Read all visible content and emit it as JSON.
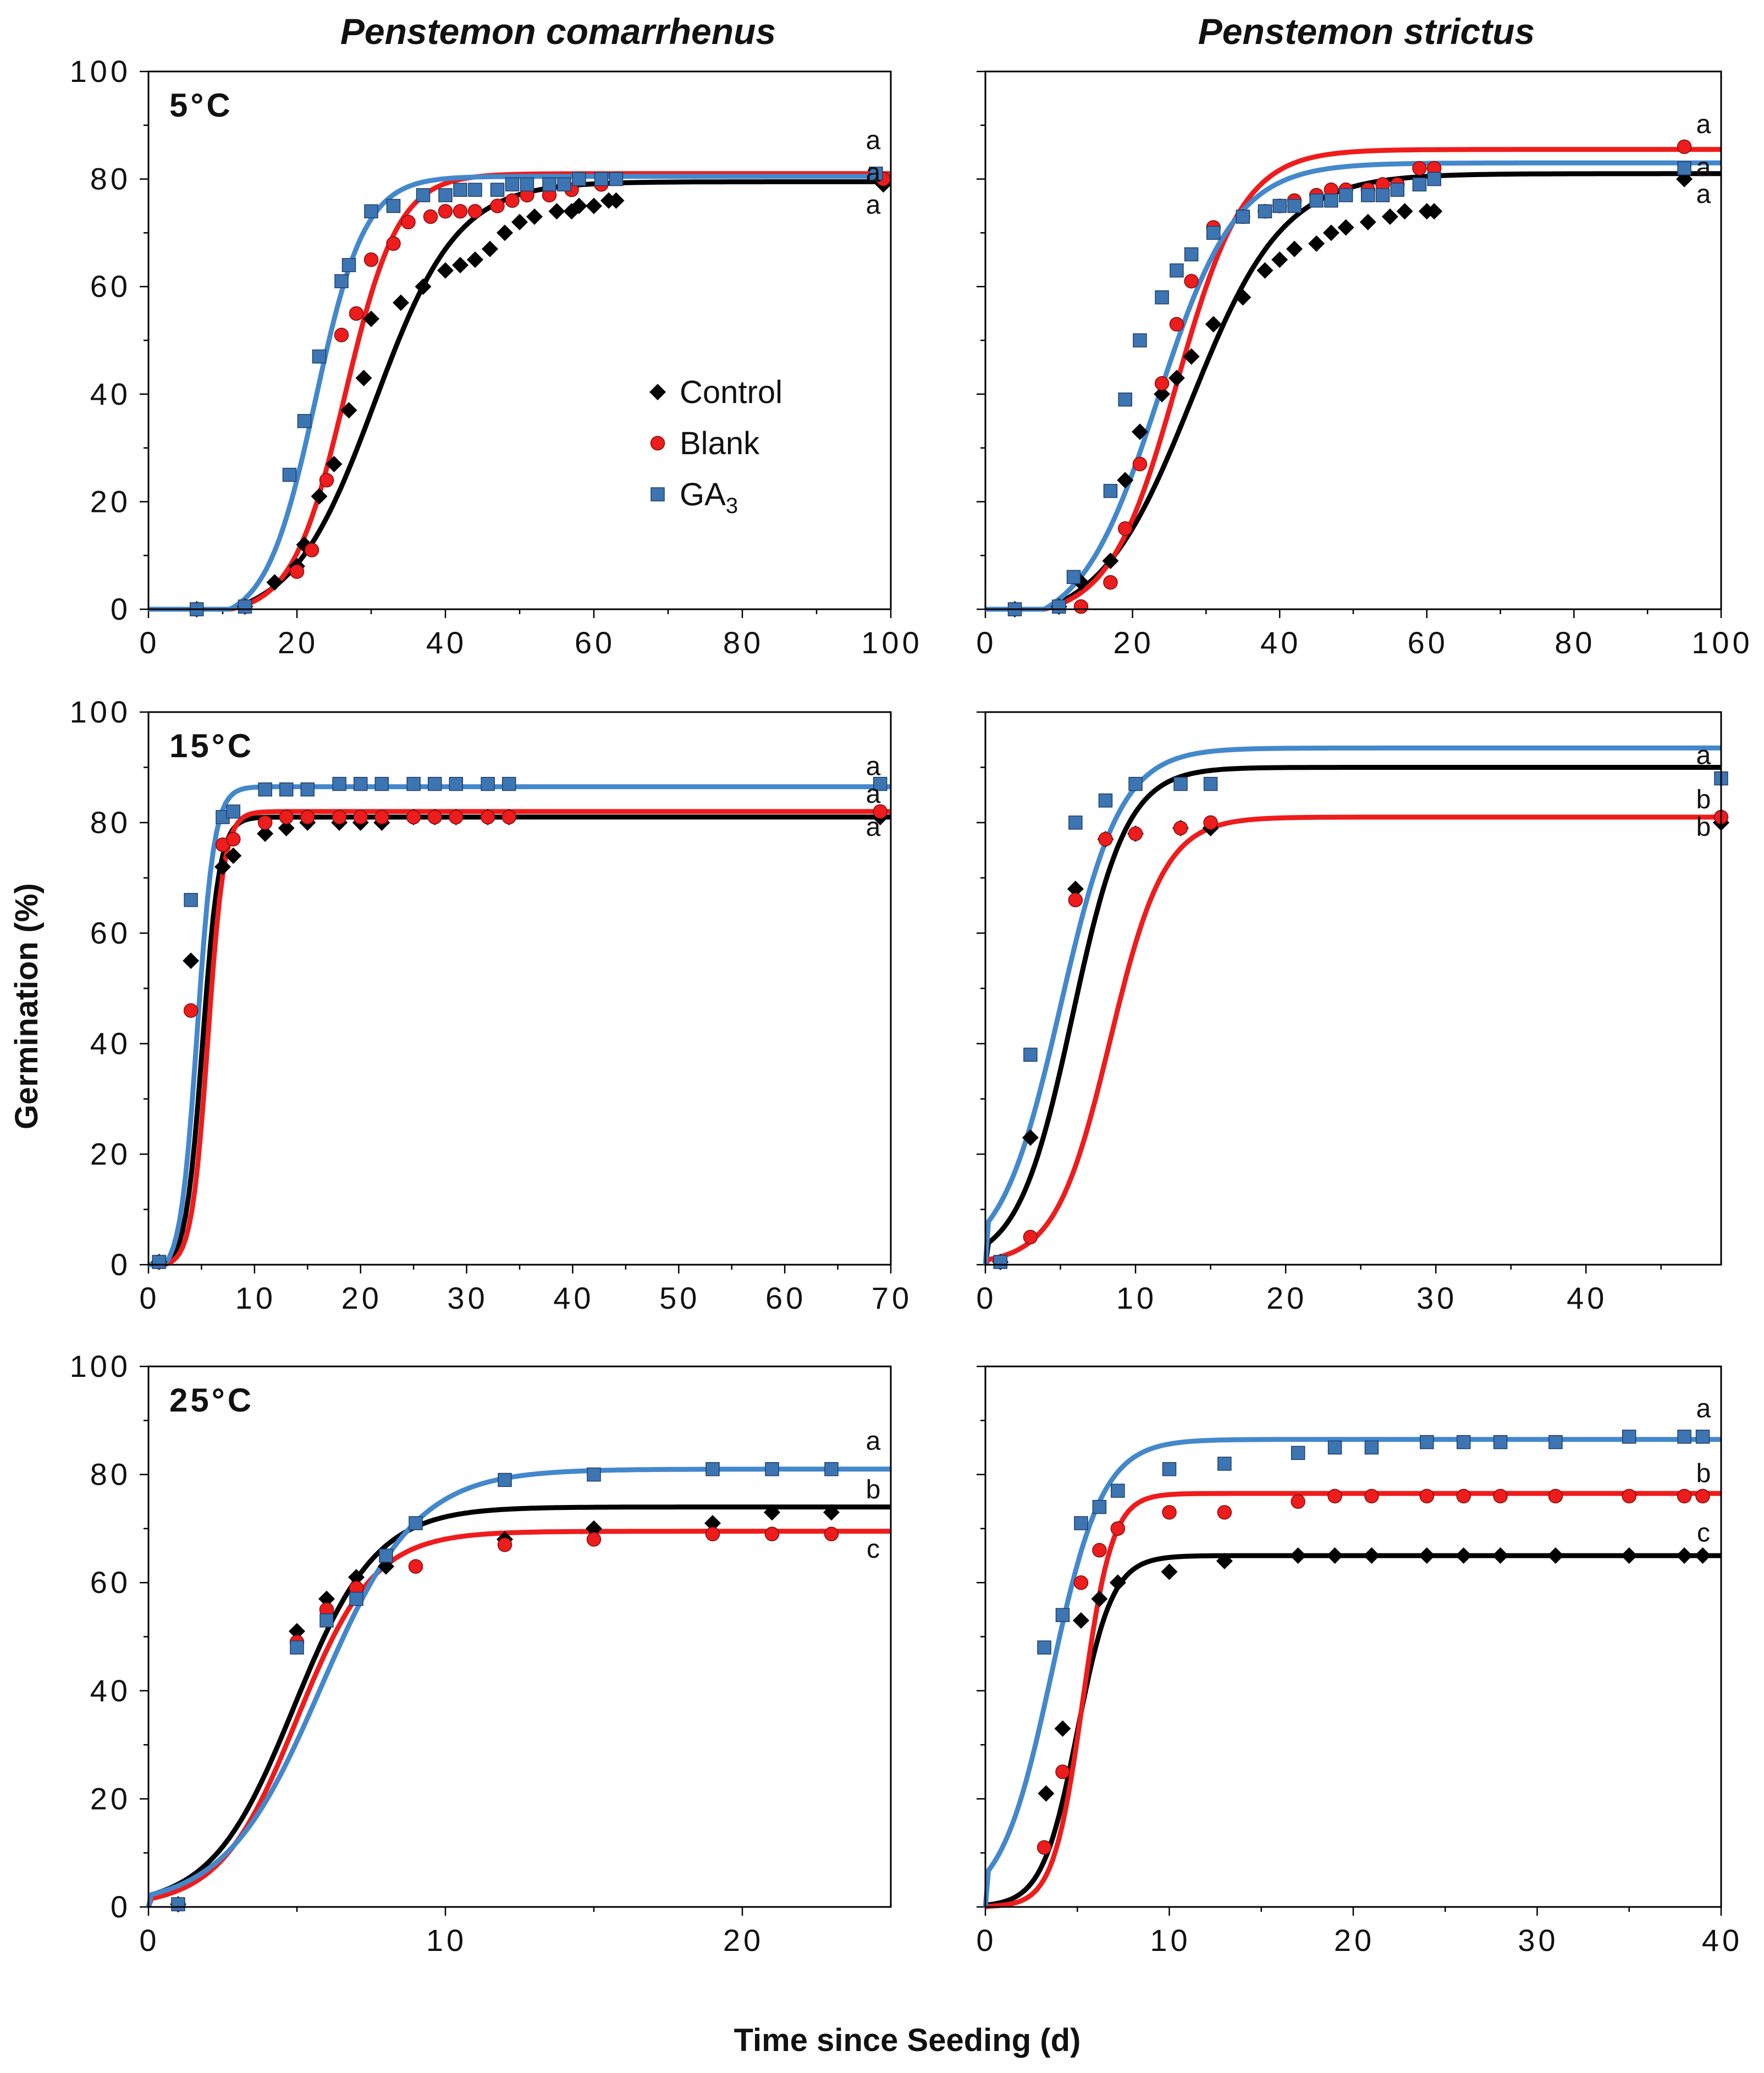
{
  "figure": {
    "col_titles": [
      "Penstemon comarrhenus",
      "Penstemon strictus"
    ],
    "ylabel": "Germination (%)",
    "xlabel": "Time since Seeding (d)",
    "legend": [
      {
        "name": "Control",
        "marker": "diamond",
        "color": "#000000"
      },
      {
        "name": "Blank",
        "marker": "circle",
        "color": "#ee1c1c"
      },
      {
        "name": "GA",
        "sub": "3",
        "marker": "square",
        "color": "#3d75b3"
      }
    ],
    "colors": {
      "Control": "#000000",
      "Blank": "#ee1c1c",
      "GA3": "#4488cc",
      "GA3_marker": "#3d75b3"
    }
  },
  "chart_data": [
    {
      "id": "p1",
      "type": "scatter",
      "row": 0,
      "col": 0,
      "temp_label": "5°C",
      "xlim": [
        0,
        100
      ],
      "ylim": [
        0,
        100
      ],
      "xticks": [
        0,
        20,
        40,
        60,
        80,
        100
      ],
      "yticks": [
        0,
        20,
        40,
        60,
        80,
        100
      ],
      "show_yticklabels": true,
      "series": [
        {
          "name": "Control",
          "x": [
            6.5,
            13,
            17,
            20,
            21,
            23,
            25,
            27,
            29,
            30,
            34,
            37,
            40,
            42,
            44,
            46,
            48,
            50,
            52,
            55,
            57,
            58,
            60,
            62,
            63,
            99
          ],
          "y": [
            0,
            0.5,
            5,
            8,
            12,
            21,
            27,
            37,
            43,
            54,
            57,
            60,
            63,
            64,
            65,
            67,
            70,
            72,
            73,
            74,
            74,
            75,
            75,
            76,
            76,
            79
          ]
        },
        {
          "name": "Blank",
          "x": [
            6.5,
            13,
            20,
            22,
            24,
            26,
            28,
            30,
            33,
            35,
            38,
            40,
            42,
            44,
            47,
            49,
            51,
            54,
            57,
            61,
            99
          ],
          "y": [
            0,
            0.5,
            7,
            11,
            24,
            51,
            55,
            65,
            68,
            72,
            73,
            74,
            74,
            74,
            75,
            76,
            77,
            77,
            78,
            79,
            80
          ]
        },
        {
          "name": "GA3",
          "x": [
            6.5,
            13,
            19,
            21,
            23,
            26,
            27,
            30,
            33,
            37,
            40,
            42,
            44,
            47,
            49,
            51,
            54,
            56,
            58,
            61,
            63,
            98
          ],
          "y": [
            0,
            0.5,
            25,
            35,
            47,
            61,
            64,
            74,
            75,
            77,
            77,
            78,
            78,
            78,
            79,
            79,
            79,
            79,
            80,
            80,
            80,
            81
          ]
        }
      ],
      "fits": {
        "Control": {
          "A": 79.5,
          "x0": 30.5,
          "k": 0.18,
          "lag": 11
        },
        "Blank": {
          "A": 81,
          "x0": 26.5,
          "k": 0.28,
          "lag": 11
        },
        "GA3": {
          "A": 80.5,
          "x0": 22.5,
          "k": 0.3,
          "lag": 11
        }
      },
      "letters": [
        {
          "text": "a",
          "y": 87
        },
        {
          "text": "a",
          "y": 81
        },
        {
          "text": "a",
          "y": 75
        }
      ]
    },
    {
      "id": "p2",
      "type": "scatter",
      "row": 0,
      "col": 1,
      "temp_label": "",
      "xlim": [
        0,
        100
      ],
      "ylim": [
        0,
        100
      ],
      "xticks": [
        0,
        20,
        40,
        60,
        80,
        100
      ],
      "yticks": [
        0,
        20,
        40,
        60,
        80,
        100
      ],
      "show_yticklabels": false,
      "series": [
        {
          "name": "Control",
          "x": [
            4,
            10,
            13,
            17,
            19,
            21,
            24,
            26,
            28,
            31,
            35,
            38,
            40,
            42,
            45,
            47,
            49,
            52,
            55,
            57,
            60,
            61,
            95
          ],
          "y": [
            0,
            0.5,
            5,
            9,
            24,
            33,
            40,
            43,
            47,
            53,
            58,
            63,
            65,
            67,
            68,
            70,
            71,
            72,
            73,
            74,
            74,
            74,
            80
          ]
        },
        {
          "name": "Blank",
          "x": [
            13,
            17,
            19,
            21,
            24,
            26,
            28,
            31,
            35,
            38,
            40,
            42,
            45,
            47,
            49,
            52,
            54,
            56,
            59,
            61,
            95
          ],
          "y": [
            0.5,
            5,
            15,
            27,
            42,
            53,
            61,
            71,
            73,
            74,
            75,
            76,
            77,
            78,
            78,
            78,
            79,
            79,
            82,
            82,
            86
          ]
        },
        {
          "name": "GA3",
          "x": [
            4,
            10,
            12,
            17,
            19,
            21,
            24,
            26,
            28,
            31,
            35,
            38,
            40,
            42,
            45,
            47,
            49,
            52,
            54,
            56,
            59,
            61,
            95
          ],
          "y": [
            0,
            0.5,
            6,
            22,
            39,
            50,
            58,
            63,
            66,
            70,
            73,
            74,
            75,
            75,
            76,
            76,
            77,
            77,
            77,
            78,
            79,
            80,
            82
          ]
        }
      ],
      "fits": {
        "Control": {
          "A": 81,
          "x0": 28,
          "k": 0.16,
          "lag": 8
        },
        "Blank": {
          "A": 85.5,
          "x0": 26,
          "k": 0.22,
          "lag": 8
        },
        "GA3": {
          "A": 83,
          "x0": 23.5,
          "k": 0.19,
          "lag": 8
        }
      },
      "letters": [
        {
          "text": "a",
          "y": 90
        },
        {
          "text": "a",
          "y": 82
        },
        {
          "text": "a",
          "y": 77
        }
      ]
    },
    {
      "id": "p3",
      "type": "scatter",
      "row": 1,
      "col": 0,
      "temp_label": "15°C",
      "xlim": [
        0,
        70
      ],
      "ylim": [
        0,
        100
      ],
      "xticks": [
        0,
        10,
        20,
        30,
        40,
        50,
        60,
        70
      ],
      "yticks": [
        0,
        20,
        40,
        60,
        80,
        100
      ],
      "show_yticklabels": true,
      "series": [
        {
          "name": "Control",
          "x": [
            1,
            4,
            7,
            8,
            11,
            13,
            15,
            18,
            20,
            22,
            25,
            27,
            29,
            32,
            34,
            69
          ],
          "y": [
            0.5,
            55,
            72,
            74,
            78,
            79,
            80,
            80,
            80,
            80,
            81,
            81,
            81,
            81,
            81,
            81
          ]
        },
        {
          "name": "Blank",
          "x": [
            1,
            4,
            7,
            8,
            11,
            13,
            15,
            18,
            20,
            22,
            25,
            27,
            29,
            32,
            34,
            69
          ],
          "y": [
            0.5,
            46,
            76,
            77,
            80,
            81,
            81,
            81,
            81,
            81,
            81,
            81,
            81,
            81,
            81,
            82
          ]
        },
        {
          "name": "GA3",
          "x": [
            1,
            4,
            7,
            8,
            11,
            13,
            15,
            18,
            20,
            22,
            25,
            27,
            29,
            32,
            34,
            69
          ],
          "y": [
            0.5,
            66,
            81,
            82,
            86,
            86,
            86,
            87,
            87,
            87,
            87,
            87,
            87,
            87,
            87,
            87
          ]
        }
      ],
      "fits": {
        "Control": {
          "A": 81,
          "x0": 5.1,
          "k": 1.25,
          "lag": 1.5
        },
        "Blank": {
          "A": 82,
          "x0": 5.6,
          "k": 1.3,
          "lag": 1.5
        },
        "GA3": {
          "A": 86.5,
          "x0": 4.6,
          "k": 1.25,
          "lag": 1.5
        }
      },
      "letters": [
        {
          "text": "a",
          "y": 90
        },
        {
          "text": "a",
          "y": 85
        },
        {
          "text": "a",
          "y": 79
        }
      ]
    },
    {
      "id": "p4",
      "type": "scatter",
      "row": 1,
      "col": 1,
      "temp_label": "",
      "xlim": [
        0,
        49
      ],
      "ylim": [
        0,
        100
      ],
      "xticks": [
        0,
        10,
        20,
        30,
        40
      ],
      "yticks": [
        0,
        20,
        40,
        60,
        80,
        100
      ],
      "show_yticklabels": false,
      "series": [
        {
          "name": "Control",
          "x": [
            1,
            3,
            6,
            8,
            10,
            13,
            15,
            49
          ],
          "y": [
            0.5,
            23,
            68,
            77,
            78,
            79,
            79,
            80
          ]
        },
        {
          "name": "Blank",
          "x": [
            1,
            3,
            6,
            8,
            10,
            13,
            15,
            49
          ],
          "y": [
            0.5,
            5,
            66,
            77,
            78,
            79,
            80,
            81
          ]
        },
        {
          "name": "GA3",
          "x": [
            1,
            3,
            6,
            8,
            10,
            13,
            15,
            49
          ],
          "y": [
            0.5,
            38,
            80,
            84,
            87,
            87,
            87,
            88
          ]
        }
      ],
      "fits": {
        "Control": {
          "A": 90,
          "x0": 5.8,
          "k": 0.55,
          "lag": 0
        },
        "Blank": {
          "A": 81,
          "x0": 8.3,
          "k": 0.55,
          "lag": 0
        },
        "GA3": {
          "A": 93.5,
          "x0": 5.0,
          "k": 0.5,
          "lag": 0
        }
      },
      "letters": [
        {
          "text": "a",
          "y": 92
        },
        {
          "text": "b",
          "y": 84
        },
        {
          "text": "b",
          "y": 79
        }
      ]
    },
    {
      "id": "p5",
      "type": "scatter",
      "row": 2,
      "col": 0,
      "temp_label": "25°C",
      "xlim": [
        0,
        25
      ],
      "ylim": [
        0,
        100
      ],
      "xticks": [
        0,
        10,
        20
      ],
      "yticks": [
        0,
        20,
        40,
        60,
        80,
        100
      ],
      "show_yticklabels": true,
      "series": [
        {
          "name": "Control",
          "x": [
            1,
            5,
            6,
            7,
            8,
            12,
            15,
            19,
            21,
            23
          ],
          "y": [
            0.5,
            51,
            57,
            61,
            63,
            68,
            70,
            71,
            73,
            73
          ]
        },
        {
          "name": "Blank",
          "x": [
            1,
            5,
            6,
            7,
            9,
            12,
            15,
            19,
            21,
            23
          ],
          "y": [
            0.5,
            49,
            55,
            59,
            63,
            67,
            68,
            69,
            69,
            69
          ]
        },
        {
          "name": "GA3",
          "x": [
            1,
            5,
            6,
            7,
            8,
            9,
            12,
            15,
            19,
            21,
            23
          ],
          "y": [
            0.5,
            48,
            53,
            57,
            65,
            71,
            79,
            80,
            81,
            81,
            81
          ]
        }
      ],
      "fits": {
        "Control": {
          "A": 74,
          "x0": 4.9,
          "k": 0.72,
          "lag": 0
        },
        "Blank": {
          "A": 69.5,
          "x0": 5.0,
          "k": 0.77,
          "lag": 0
        },
        "GA3": {
          "A": 81,
          "x0": 5.8,
          "k": 0.62,
          "lag": 0
        }
      },
      "letters": [
        {
          "text": "a",
          "y": 86
        },
        {
          "text": "b",
          "y": 77
        },
        {
          "text": "c",
          "y": 66
        }
      ]
    },
    {
      "id": "p6",
      "type": "scatter",
      "row": 2,
      "col": 1,
      "temp_label": "",
      "xlim": [
        0,
        40
      ],
      "ylim": [
        0,
        100
      ],
      "xticks": [
        0,
        10,
        20,
        30,
        40
      ],
      "yticks": [
        0,
        20,
        40,
        60,
        80,
        100
      ],
      "show_yticklabels": false,
      "series": [
        {
          "name": "Control",
          "x": [
            3.3,
            4.2,
            5.2,
            6.2,
            7.2,
            10,
            13,
            17,
            19,
            21,
            24,
            26,
            28,
            31,
            35,
            38,
            39
          ],
          "y": [
            21,
            33,
            53,
            57,
            60,
            62,
            64,
            65,
            65,
            65,
            65,
            65,
            65,
            65,
            65,
            65,
            65
          ]
        },
        {
          "name": "Blank",
          "x": [
            3.2,
            4.2,
            5.2,
            6.2,
            7.2,
            10,
            13,
            17,
            19,
            21,
            24,
            26,
            28,
            31,
            35,
            38,
            39
          ],
          "y": [
            11,
            25,
            60,
            66,
            70,
            73,
            73,
            75,
            76,
            76,
            76,
            76,
            76,
            76,
            76,
            76,
            76
          ]
        },
        {
          "name": "GA3",
          "x": [
            3.2,
            4.2,
            5.2,
            6.2,
            7.2,
            10,
            13,
            17,
            19,
            21,
            24,
            26,
            28,
            31,
            35,
            38,
            39
          ],
          "y": [
            48,
            54,
            71,
            74,
            77,
            81,
            82,
            84,
            85,
            85,
            86,
            86,
            86,
            86,
            87,
            87,
            87
          ]
        }
      ],
      "fits": {
        "Control": {
          "A": 65,
          "x0": 5.0,
          "k": 1.05,
          "lag": 0
        },
        "Blank": {
          "A": 76.5,
          "x0": 5.3,
          "k": 1.25,
          "lag": 0
        },
        "GA3": {
          "A": 86.5,
          "x0": 3.6,
          "k": 0.72,
          "lag": 0
        }
      },
      "letters": [
        {
          "text": "a",
          "y": 92
        },
        {
          "text": "b",
          "y": 80
        },
        {
          "text": "c",
          "y": 69
        }
      ]
    }
  ]
}
